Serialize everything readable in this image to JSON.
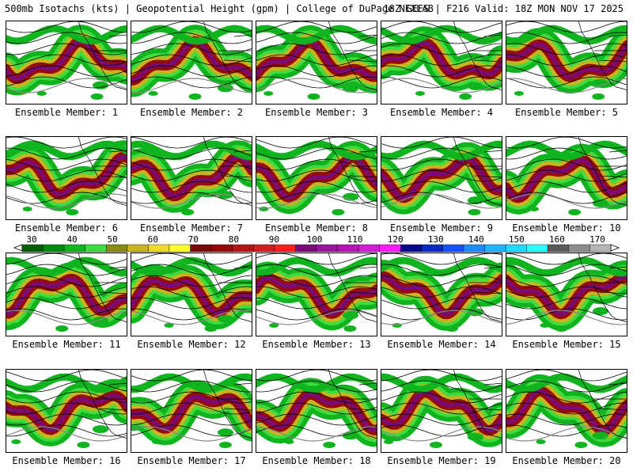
{
  "header": {
    "title_left": "500mb Isotachs (kts) | Geopotential Height (gpm) | College of DuPage NEXLAB",
    "title_right": "18Z GEFS | F216 Valid: 18Z MON NOV 17 2025"
  },
  "members": [
    {
      "label": "Ensemble Member: 1"
    },
    {
      "label": "Ensemble Member: 2"
    },
    {
      "label": "Ensemble Member: 3"
    },
    {
      "label": "Ensemble Member: 4"
    },
    {
      "label": "Ensemble Member: 5"
    },
    {
      "label": "Ensemble Member: 6"
    },
    {
      "label": "Ensemble Member: 7"
    },
    {
      "label": "Ensemble Member: 8"
    },
    {
      "label": "Ensemble Member: 9"
    },
    {
      "label": "Ensemble Member: 10"
    },
    {
      "label": "Ensemble Member: 11"
    },
    {
      "label": "Ensemble Member: 12"
    },
    {
      "label": "Ensemble Member: 13"
    },
    {
      "label": "Ensemble Member: 14"
    },
    {
      "label": "Ensemble Member: 15"
    },
    {
      "label": "Ensemble Member: 16"
    },
    {
      "label": "Ensemble Member: 17"
    },
    {
      "label": "Ensemble Member: 18"
    },
    {
      "label": "Ensemble Member: 19"
    },
    {
      "label": "Ensemble Member: 20"
    }
  ],
  "legend": {
    "units": "kts",
    "labels": [
      "30",
      "40",
      "50",
      "60",
      "70",
      "80",
      "90",
      "100",
      "110",
      "120",
      "130",
      "140",
      "150",
      "160",
      "170"
    ],
    "colors": [
      "#00600a",
      "#008c14",
      "#10b41e",
      "#3fdc3f",
      "#8a8a14",
      "#c8b41e",
      "#f0dc28",
      "#ffff28",
      "#7a0a0a",
      "#960a0a",
      "#b41414",
      "#d21e1e",
      "#ff1e1e",
      "#7a0a7a",
      "#9a149a",
      "#b414b4",
      "#d21ed2",
      "#ff1eff",
      "#0a0a8c",
      "#0a28c8",
      "#1450ff",
      "#1e8cff",
      "#1eb4ff",
      "#1edcff",
      "#28ffff",
      "#5a5a5a",
      "#8c8c8c",
      "#b4b4b4"
    ]
  }
}
